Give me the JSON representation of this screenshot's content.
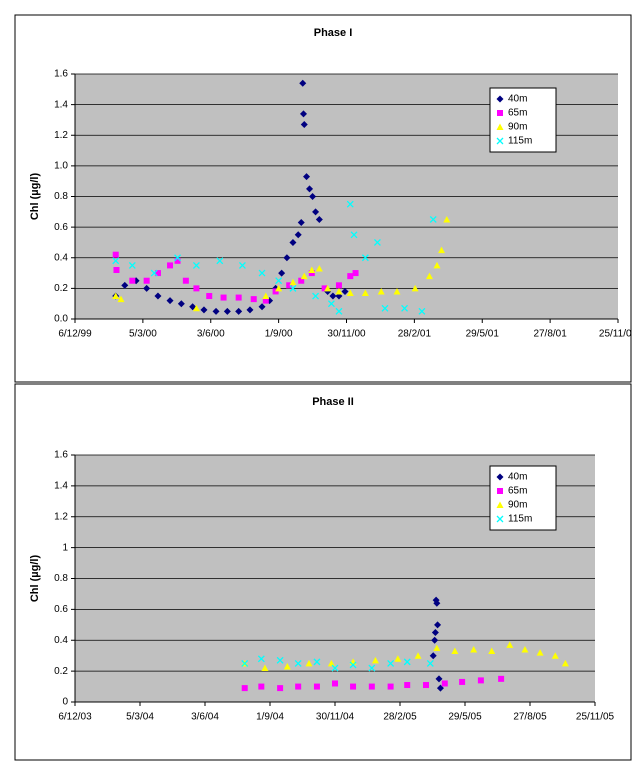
{
  "chart_data": [
    {
      "type": "scatter",
      "title": "Phase I",
      "y_label": "Chl (µg/l)",
      "xlim": [
        "1999-12-06",
        "2001-11-25"
      ],
      "xticks": [
        {
          "value": "1999-12-06",
          "label": "6/12/99"
        },
        {
          "value": "2000-03-05",
          "label": "5/3/00"
        },
        {
          "value": "2000-06-03",
          "label": "3/6/00"
        },
        {
          "value": "2000-09-01",
          "label": "1/9/00"
        },
        {
          "value": "2000-11-30",
          "label": "30/11/00"
        },
        {
          "value": "2001-02-28",
          "label": "28/2/01"
        },
        {
          "value": "2001-05-29",
          "label": "29/5/01"
        },
        {
          "value": "2001-08-27",
          "label": "27/8/01"
        },
        {
          "value": "2001-11-25",
          "label": "25/11/01"
        }
      ],
      "ylim": [
        0,
        1.6
      ],
      "yticks": [
        {
          "value": 0,
          "label": "0.0"
        },
        {
          "value": 0.2,
          "label": "0.2"
        },
        {
          "value": 0.4,
          "label": "0.4"
        },
        {
          "value": 0.6,
          "label": "0.6"
        },
        {
          "value": 0.8,
          "label": "0.8"
        },
        {
          "value": 1,
          "label": "1.0"
        },
        {
          "value": 1.2,
          "label": "1.2"
        },
        {
          "value": 1.4,
          "label": "1.4"
        },
        {
          "value": 1.6,
          "label": "1.6"
        }
      ],
      "grid": true,
      "series": [
        {
          "name": "40m",
          "color": "#000080",
          "marker": "diamond",
          "x": [
            "2000-01-29",
            "2000-02-10",
            "2000-02-25",
            "2000-03-10",
            "2000-03-25",
            "2000-04-10",
            "2000-04-25",
            "2000-05-10",
            "2000-05-25",
            "2000-06-10",
            "2000-06-25",
            "2000-07-10",
            "2000-07-25",
            "2000-08-10",
            "2000-08-20",
            "2000-08-28",
            "2000-09-05",
            "2000-09-12",
            "2000-09-20",
            "2000-09-27",
            "2000-10-01",
            "2000-10-03",
            "2000-10-04",
            "2000-10-05",
            "2000-10-08",
            "2000-10-12",
            "2000-10-16",
            "2000-10-20",
            "2000-10-25",
            "2000-11-05",
            "2000-11-12",
            "2000-11-20",
            "2000-11-28"
          ],
          "values": [
            0.15,
            0.22,
            0.25,
            0.2,
            0.15,
            0.12,
            0.1,
            0.08,
            0.06,
            0.05,
            0.05,
            0.05,
            0.06,
            0.08,
            0.12,
            0.2,
            0.3,
            0.4,
            0.5,
            0.55,
            0.63,
            1.54,
            1.34,
            1.27,
            0.93,
            0.85,
            0.8,
            0.7,
            0.65,
            0.18,
            0.15,
            0.15,
            0.18
          ]
        },
        {
          "name": "65m",
          "color": "#ff00ff",
          "marker": "square",
          "x": [
            "2000-01-29",
            "2000-01-30",
            "2000-02-20",
            "2000-03-10",
            "2000-03-25",
            "2000-04-10",
            "2000-04-20",
            "2000-05-01",
            "2000-05-15",
            "2000-06-01",
            "2000-06-20",
            "2000-07-10",
            "2000-07-30",
            "2000-08-15",
            "2000-08-28",
            "2000-09-15",
            "2000-10-01",
            "2000-10-15",
            "2000-11-01",
            "2000-11-20",
            "2000-12-05",
            "2000-12-12"
          ],
          "values": [
            0.42,
            0.32,
            0.25,
            0.25,
            0.3,
            0.35,
            0.38,
            0.25,
            0.2,
            0.15,
            0.14,
            0.14,
            0.13,
            0.12,
            0.18,
            0.22,
            0.25,
            0.3,
            0.2,
            0.22,
            0.28,
            0.3
          ]
        },
        {
          "name": "90m",
          "color": "#ffff00",
          "marker": "triangle",
          "x": [
            "2000-01-29",
            "2000-02-05",
            "2000-05-15",
            "2000-08-15",
            "2000-09-01",
            "2000-09-20",
            "2000-10-05",
            "2000-10-15",
            "2000-10-25",
            "2000-11-05",
            "2000-11-20",
            "2000-12-05",
            "2000-12-25",
            "2001-01-15",
            "2001-02-05",
            "2001-03-01",
            "2001-03-20",
            "2001-03-30",
            "2001-04-05",
            "2001-04-12"
          ],
          "values": [
            0.15,
            0.13,
            0.07,
            0.15,
            0.2,
            0.24,
            0.28,
            0.32,
            0.33,
            0.2,
            0.18,
            0.17,
            0.17,
            0.18,
            0.18,
            0.2,
            0.28,
            0.35,
            0.45,
            0.65
          ]
        },
        {
          "name": "115m",
          "color": "#00ffff",
          "marker": "x",
          "x": [
            "2000-01-29",
            "2000-02-20",
            "2000-03-20",
            "2000-04-20",
            "2000-05-15",
            "2000-06-15",
            "2000-07-15",
            "2000-08-10",
            "2000-09-01",
            "2000-09-20",
            "2000-10-20",
            "2000-11-10",
            "2000-11-20",
            "2000-12-05",
            "2000-12-10",
            "2000-12-25",
            "2001-01-10",
            "2001-01-20",
            "2001-02-15",
            "2001-03-10",
            "2001-03-25"
          ],
          "values": [
            0.38,
            0.35,
            0.3,
            0.4,
            0.35,
            0.38,
            0.35,
            0.3,
            0.25,
            0.2,
            0.15,
            0.1,
            0.05,
            0.75,
            0.55,
            0.4,
            0.5,
            0.07,
            0.07,
            0.05,
            0.65
          ]
        }
      ]
    },
    {
      "type": "scatter",
      "title": "Phase II",
      "y_label": "Chl (µg/l)",
      "xlim": [
        "2003-12-06",
        "2005-11-25"
      ],
      "xticks": [
        {
          "value": "2003-12-06",
          "label": "6/12/03"
        },
        {
          "value": "2004-03-05",
          "label": "5/3/04"
        },
        {
          "value": "2004-06-03",
          "label": "3/6/04"
        },
        {
          "value": "2004-09-01",
          "label": "1/9/04"
        },
        {
          "value": "2004-11-30",
          "label": "30/11/04"
        },
        {
          "value": "2005-02-28",
          "label": "28/2/05"
        },
        {
          "value": "2005-05-29",
          "label": "29/5/05"
        },
        {
          "value": "2005-08-27",
          "label": "27/8/05"
        },
        {
          "value": "2005-11-25",
          "label": "25/11/05"
        }
      ],
      "ylim": [
        0,
        1.6
      ],
      "yticks": [
        0,
        0.2,
        0.4,
        0.6,
        0.8,
        1,
        1.2,
        1.4,
        1.6
      ],
      "grid": true,
      "series": [
        {
          "name": "40m",
          "color": "#000080",
          "marker": "diamond",
          "x": [
            "2005-04-15",
            "2005-04-17",
            "2005-04-18",
            "2005-04-19",
            "2005-04-20",
            "2005-04-21",
            "2005-04-23",
            "2005-04-25"
          ],
          "values": [
            0.3,
            0.4,
            0.45,
            0.66,
            0.64,
            0.5,
            0.15,
            0.09
          ]
        },
        {
          "name": "65m",
          "color": "#ff00ff",
          "marker": "square",
          "x": [
            "2004-07-28",
            "2004-08-20",
            "2004-09-15",
            "2004-10-10",
            "2004-11-05",
            "2004-11-30",
            "2004-12-25",
            "2005-01-20",
            "2005-02-15",
            "2005-03-10",
            "2005-04-05",
            "2005-05-01",
            "2005-05-25",
            "2005-06-20",
            "2005-07-18"
          ],
          "values": [
            0.09,
            0.1,
            0.09,
            0.1,
            0.1,
            0.12,
            0.1,
            0.1,
            0.1,
            0.11,
            0.11,
            0.12,
            0.13,
            0.14,
            0.15
          ]
        },
        {
          "name": "90m",
          "color": "#ffff00",
          "marker": "triangle",
          "x": [
            "2004-07-28",
            "2004-08-25",
            "2004-09-25",
            "2004-10-25",
            "2004-11-25",
            "2004-12-25",
            "2005-01-25",
            "2005-02-25",
            "2005-03-25",
            "2005-04-20",
            "2005-05-15",
            "2005-06-10",
            "2005-07-05",
            "2005-07-30",
            "2005-08-20",
            "2005-09-10",
            "2005-10-01",
            "2005-10-15"
          ],
          "values": [
            0.25,
            0.22,
            0.23,
            0.25,
            0.25,
            0.26,
            0.27,
            0.28,
            0.3,
            0.35,
            0.33,
            0.34,
            0.33,
            0.37,
            0.34,
            0.32,
            0.3,
            0.25
          ]
        },
        {
          "name": "115m",
          "color": "#00ffff",
          "marker": "x",
          "x": [
            "2004-07-28",
            "2004-08-20",
            "2004-09-15",
            "2004-10-10",
            "2004-11-05",
            "2004-11-30",
            "2004-12-25",
            "2005-01-20",
            "2005-02-15",
            "2005-03-10",
            "2005-04-11"
          ],
          "values": [
            0.25,
            0.28,
            0.27,
            0.25,
            0.26,
            0.22,
            0.24,
            0.22,
            0.25,
            0.26,
            0.25
          ]
        }
      ]
    }
  ]
}
